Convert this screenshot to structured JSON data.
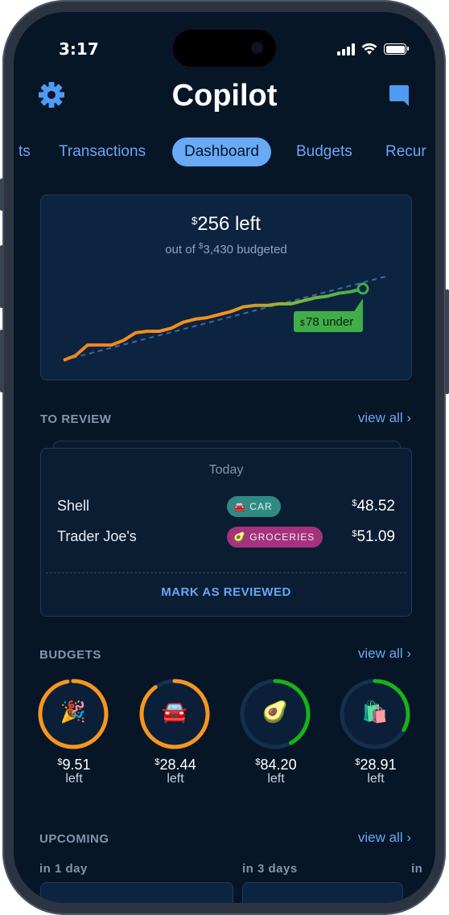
{
  "status_bar": {
    "time": "3:17"
  },
  "app": {
    "title": "Copilot"
  },
  "tabs": [
    "ts",
    "Transactions",
    "Dashboard",
    "Budgets",
    "Recur"
  ],
  "summary": {
    "currency": "$",
    "left_amount": "256 left",
    "sub_prefix": "out of ",
    "sub_amount": "3,430 budgeted",
    "under_badge": "78 under"
  },
  "chart_data": {
    "type": "line",
    "title": "",
    "x": [
      0,
      1,
      2,
      3,
      4,
      5,
      6,
      7,
      8,
      9,
      10,
      11,
      12,
      13,
      14,
      15,
      16,
      17,
      18,
      19,
      20,
      21,
      22,
      23,
      24,
      25
    ],
    "values": [
      0,
      3,
      10,
      10,
      10,
      13,
      18,
      19,
      19,
      21,
      25,
      27,
      28,
      30,
      32,
      35,
      36,
      36,
      37,
      37,
      39,
      41,
      42,
      44,
      45,
      47
    ],
    "on_budget_pace": "dashed diagonal",
    "colors": {
      "spent_start": "#f5841f",
      "spent_end": "#3fae49",
      "pace": "#3a6aa0",
      "badge": "#3fae49"
    }
  },
  "review": {
    "title": "TO REVIEW",
    "view_all": "view all ›",
    "date_label": "Today",
    "transactions": [
      {
        "merchant": "Shell",
        "category": "CAR",
        "emoji": "🚘",
        "amount": "48.52",
        "color": "#2f8a84"
      },
      {
        "merchant": "Trader Joe's",
        "category": "GROCERIES",
        "emoji": "🥑",
        "amount": "51.09",
        "color": "#a6317d"
      }
    ],
    "mark_button": "MARK AS REVIEWED"
  },
  "budgets": {
    "title": "BUDGETS",
    "view_all": "view all ›",
    "items": [
      {
        "emoji": "🎉",
        "amount": "9.51",
        "left": "left",
        "progress": 0.97,
        "color": "#f7961e"
      },
      {
        "emoji": "🚘",
        "amount": "28.44",
        "left": "left",
        "progress": 0.9,
        "color": "#f7961e"
      },
      {
        "emoji": "🥑",
        "amount": "84.20",
        "left": "left",
        "progress": 0.42,
        "color": "#18b218"
      },
      {
        "emoji": "🛍️",
        "amount": "28.91",
        "left": "left",
        "progress": 0.33,
        "color": "#18b218"
      }
    ]
  },
  "upcoming": {
    "title": "UPCOMING",
    "view_all": "view all ›",
    "groups": [
      "in 1 day",
      "in 3 days",
      "in"
    ]
  }
}
